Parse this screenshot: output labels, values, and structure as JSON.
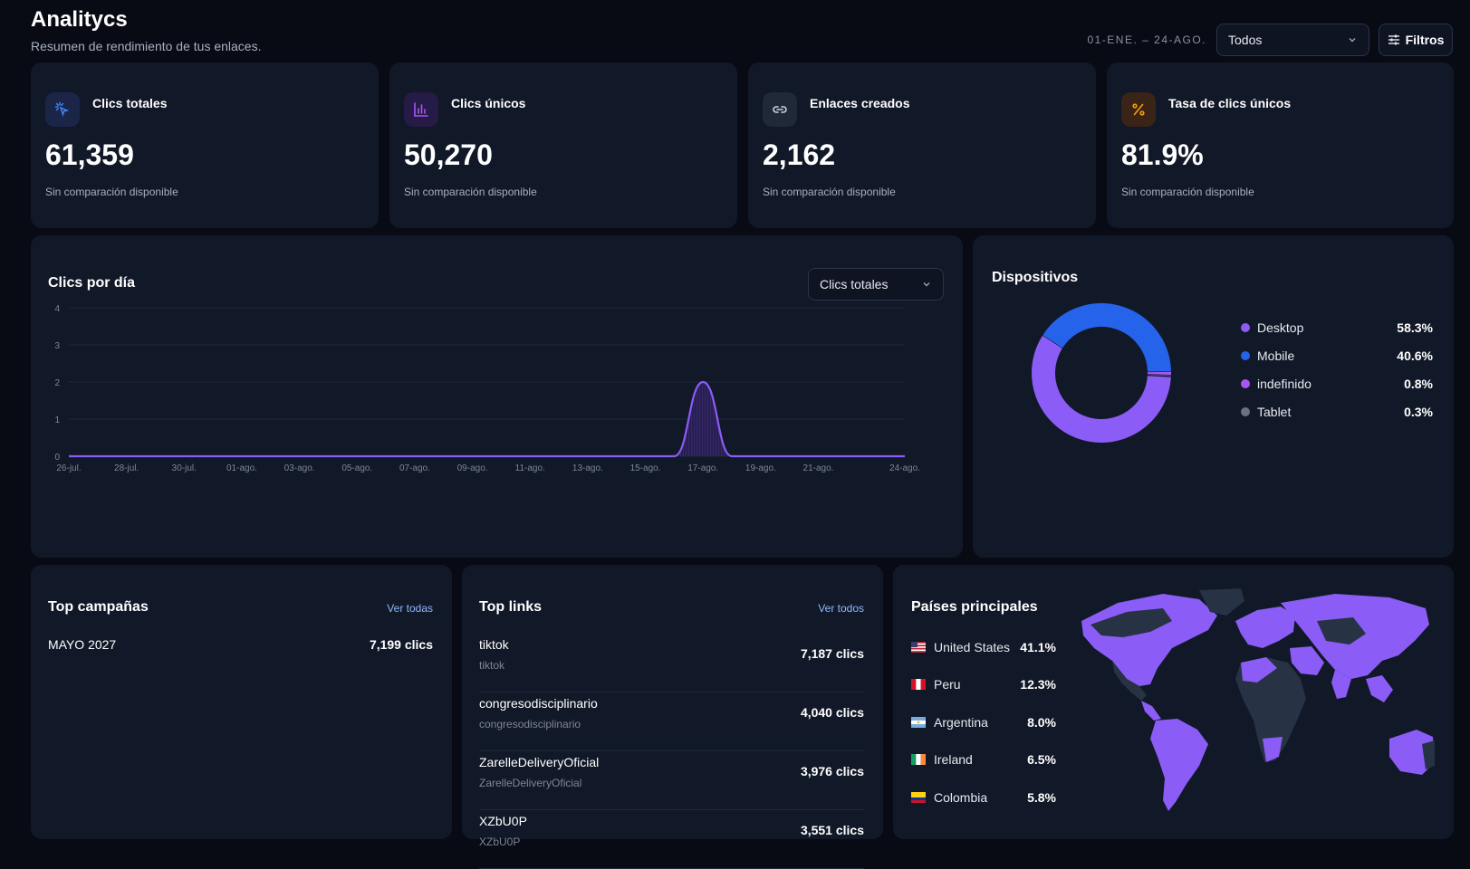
{
  "header": {
    "title": "Analitycs",
    "subtitle": "Resumen de rendimiento de tus enlaces.",
    "date_range": "01-ENE. – 24-AGO.",
    "filter_select": "Todos",
    "filters_button": "Filtros"
  },
  "kpis": [
    {
      "label": "Clics totales",
      "value": "61,359",
      "note": "Sin comparación disponible",
      "icon": "cursor-click-icon",
      "icon_color": "#3b82f6",
      "icon_bg": "#1b2547"
    },
    {
      "label": "Clics únicos",
      "value": "50,270",
      "note": "Sin comparación disponible",
      "icon": "bar-chart-icon",
      "icon_color": "#a855f7",
      "icon_bg": "#261b47"
    },
    {
      "label": "Enlaces creados",
      "value": "2,162",
      "note": "Sin comparación disponible",
      "icon": "link-icon",
      "icon_color": "#cbd5e1",
      "icon_bg": "#1f2937"
    },
    {
      "label": "Tasa de clics únicos",
      "value": "81.9%",
      "note": "Sin comparación disponible",
      "icon": "percent-icon",
      "icon_color": "#f59e0b",
      "icon_bg": "#3a2418"
    }
  ],
  "clicks_chart": {
    "title": "Clics por día",
    "metric_select": "Clics totales"
  },
  "chart_data": {
    "type": "area",
    "title": "Clics por día",
    "xlabel": "",
    "ylabel": "",
    "ylim": [
      0,
      4
    ],
    "yticks": [
      "0",
      "1",
      "2",
      "3",
      "4"
    ],
    "x_tick_labels": [
      "26-jul.",
      "28-jul.",
      "30-jul.",
      "01-ago.",
      "03-ago.",
      "05-ago.",
      "07-ago.",
      "09-ago.",
      "11-ago.",
      "13-ago.",
      "15-ago.",
      "17-ago.",
      "19-ago.",
      "21-ago.",
      "24-ago."
    ],
    "x": [
      "26-jul.",
      "27-jul.",
      "28-jul.",
      "29-jul.",
      "30-jul.",
      "31-jul.",
      "01-ago.",
      "02-ago.",
      "03-ago.",
      "04-ago.",
      "05-ago.",
      "06-ago.",
      "07-ago.",
      "08-ago.",
      "09-ago.",
      "10-ago.",
      "11-ago.",
      "12-ago.",
      "13-ago.",
      "14-ago.",
      "15-ago.",
      "16-ago.",
      "17-ago.",
      "18-ago.",
      "19-ago.",
      "20-ago.",
      "21-ago.",
      "22-ago.",
      "23-ago.",
      "24-ago."
    ],
    "series": [
      {
        "values": [
          0,
          0,
          0,
          0,
          0,
          0,
          0,
          0,
          0,
          0,
          0,
          0,
          0,
          0,
          0,
          0,
          0,
          0,
          0,
          0,
          0,
          0,
          2,
          0,
          0,
          0,
          0,
          0,
          0,
          0
        ]
      }
    ],
    "grid": true,
    "line_color": "#8b5cf6"
  },
  "devices": {
    "title": "Dispositivos",
    "items": [
      {
        "name": "Desktop",
        "pct": "58.3%",
        "value": 58.3,
        "color": "#8b5cf6"
      },
      {
        "name": "Mobile",
        "pct": "40.6%",
        "value": 40.6,
        "color": "#2563eb"
      },
      {
        "name": "indefinido",
        "pct": "0.8%",
        "value": 0.8,
        "color": "#a855f7"
      },
      {
        "name": "Tablet",
        "pct": "0.3%",
        "value": 0.3,
        "color": "#6b7280"
      }
    ]
  },
  "campaigns": {
    "title": "Top campañas",
    "link": "Ver todas",
    "items": [
      {
        "name": "MAYO 2027",
        "clicks": "7,199 clics"
      }
    ]
  },
  "links": {
    "title": "Top links",
    "link": "Ver todos",
    "items": [
      {
        "name": "tiktok",
        "slug": "tiktok",
        "clicks": "7,187 clics"
      },
      {
        "name": "congresodisciplinario",
        "slug": "congresodisciplinario",
        "clicks": "4,040 clics"
      },
      {
        "name": "ZarelleDeliveryOficial",
        "slug": "ZarelleDeliveryOficial",
        "clicks": "3,976 clics"
      },
      {
        "name": "XZbU0P",
        "slug": "XZbU0P",
        "clicks": "3,551 clics"
      }
    ]
  },
  "countries": {
    "title": "Países principales",
    "items": [
      {
        "name": "United States",
        "pct": "41.1%",
        "flag": "us-flag-icon"
      },
      {
        "name": "Peru",
        "pct": "12.3%",
        "flag": "peru-flag-icon"
      },
      {
        "name": "Argentina",
        "pct": "8.0%",
        "flag": "argentina-flag-icon"
      },
      {
        "name": "Ireland",
        "pct": "6.5%",
        "flag": "ireland-flag-icon"
      },
      {
        "name": "Colombia",
        "pct": "5.8%",
        "flag": "colombia-flag-icon"
      }
    ],
    "map_active_color": "#8b5cf6",
    "map_inactive_color": "#273244"
  }
}
